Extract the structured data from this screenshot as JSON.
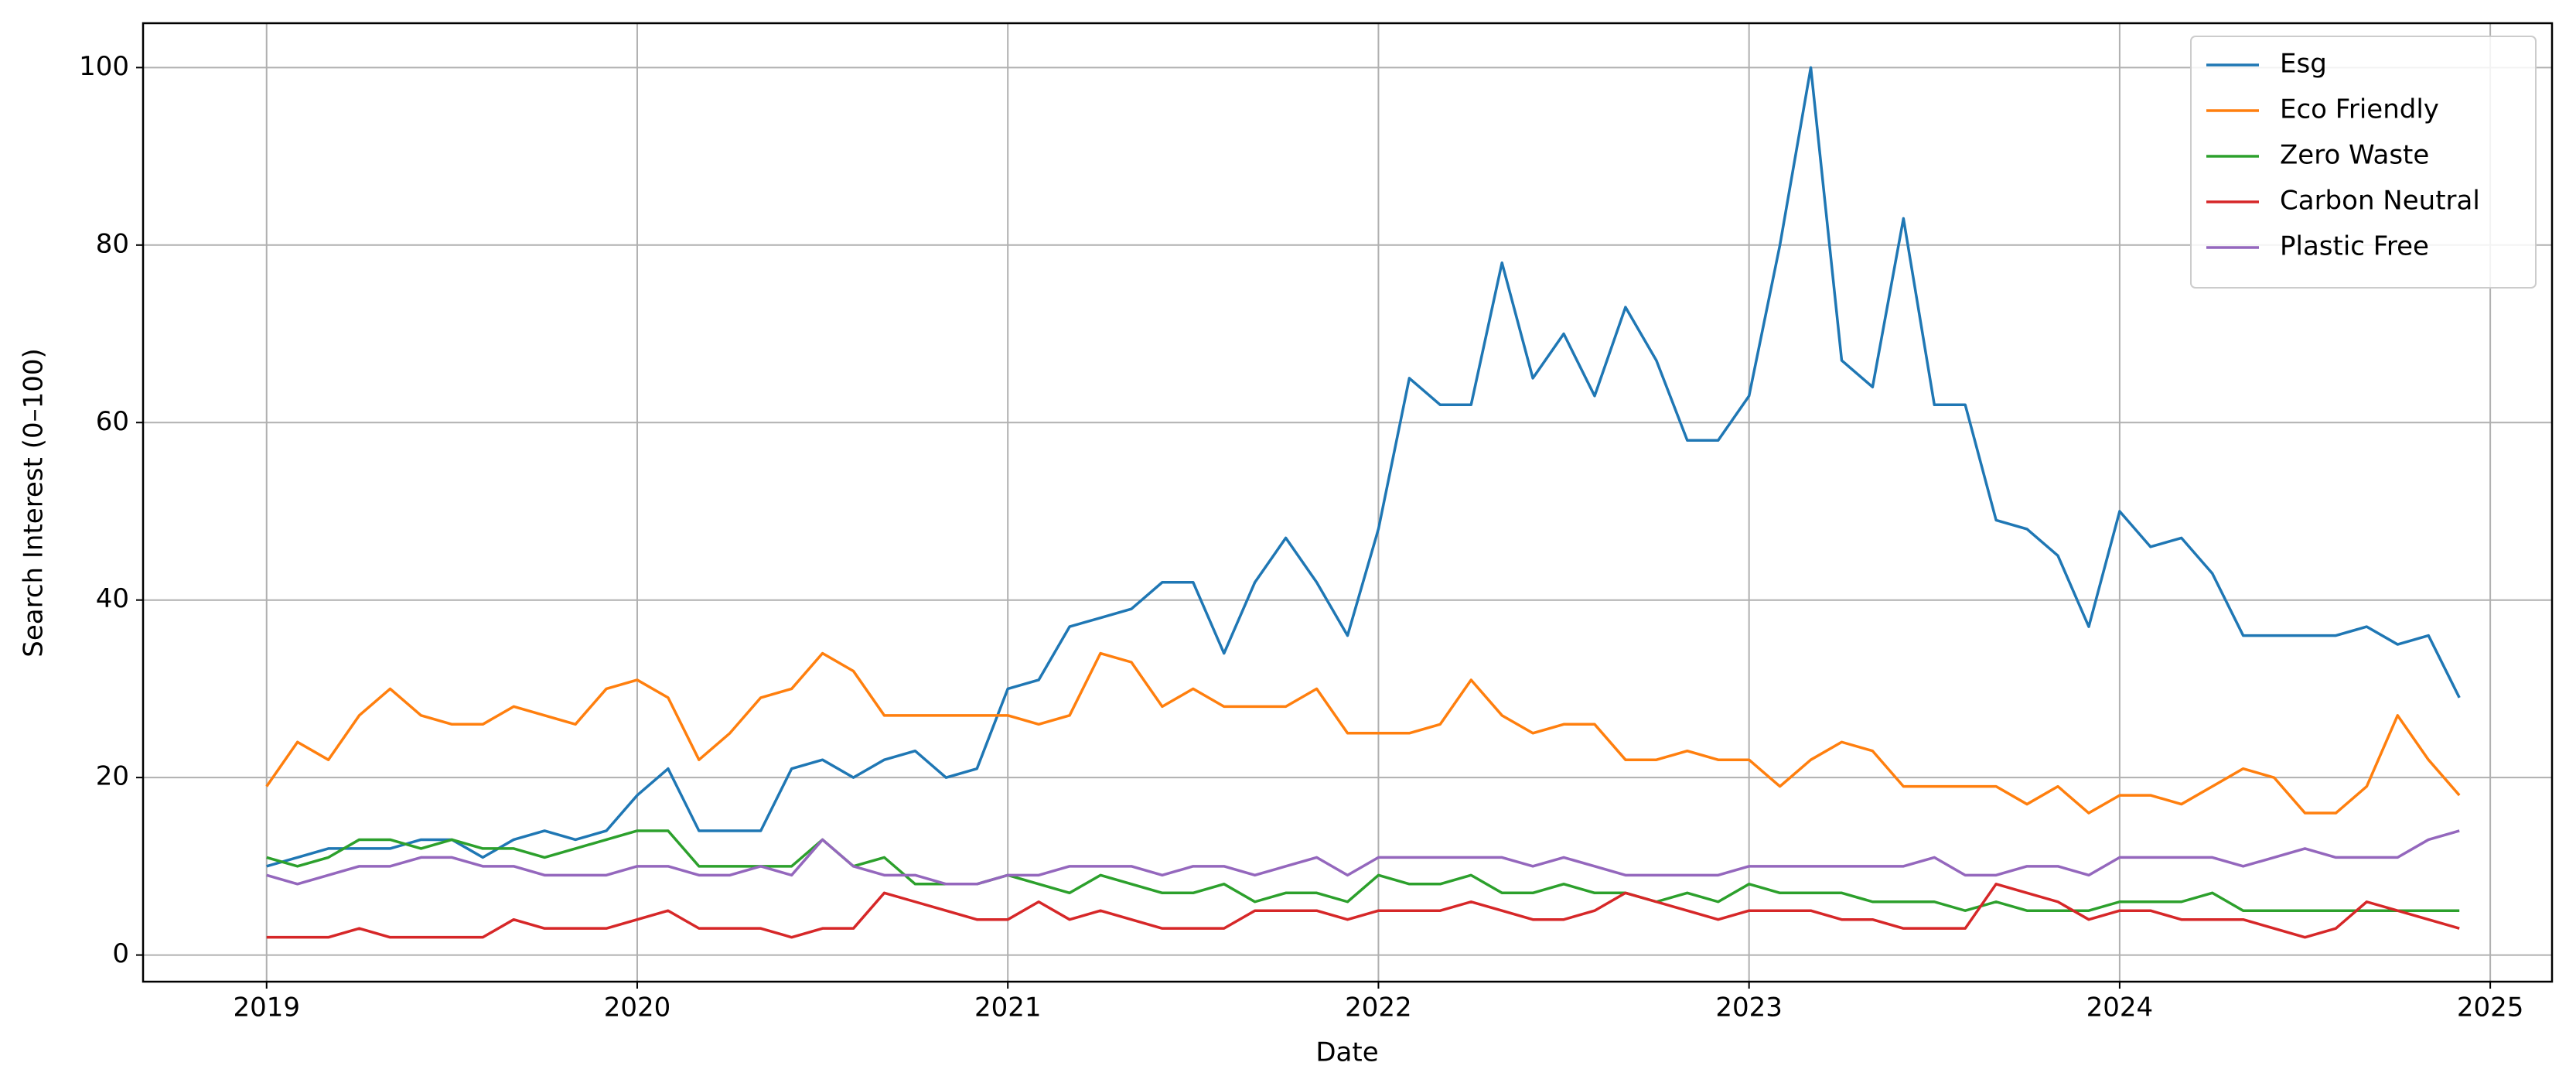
{
  "chart_data": {
    "type": "line",
    "x_label": "Date",
    "y_label": "Search Interest (0–100)",
    "x": [
      "2019-01",
      "2019-02",
      "2019-03",
      "2019-04",
      "2019-05",
      "2019-06",
      "2019-07",
      "2019-08",
      "2019-09",
      "2019-10",
      "2019-11",
      "2019-12",
      "2020-01",
      "2020-02",
      "2020-03",
      "2020-04",
      "2020-05",
      "2020-06",
      "2020-07",
      "2020-08",
      "2020-09",
      "2020-10",
      "2020-11",
      "2020-12",
      "2021-01",
      "2021-02",
      "2021-03",
      "2021-04",
      "2021-05",
      "2021-06",
      "2021-07",
      "2021-08",
      "2021-09",
      "2021-10",
      "2021-11",
      "2021-12",
      "2022-01",
      "2022-02",
      "2022-03",
      "2022-04",
      "2022-05",
      "2022-06",
      "2022-07",
      "2022-08",
      "2022-09",
      "2022-10",
      "2022-11",
      "2022-12",
      "2023-01",
      "2023-02",
      "2023-03",
      "2023-04",
      "2023-05",
      "2023-06",
      "2023-07",
      "2023-08",
      "2023-09",
      "2023-10",
      "2023-11",
      "2023-12",
      "2024-01",
      "2024-02",
      "2024-03",
      "2024-04",
      "2024-05",
      "2024-06",
      "2024-07",
      "2024-08",
      "2024-09",
      "2024-10",
      "2024-11",
      "2024-12"
    ],
    "series": [
      {
        "name": "Esg",
        "color": "#1f77b4",
        "values": [
          10,
          11,
          12,
          12,
          12,
          13,
          13,
          11,
          13,
          14,
          13,
          14,
          18,
          21,
          14,
          14,
          14,
          21,
          22,
          20,
          22,
          23,
          20,
          21,
          30,
          31,
          37,
          38,
          39,
          42,
          42,
          34,
          42,
          47,
          42,
          36,
          48,
          65,
          62,
          62,
          78,
          65,
          70,
          63,
          73,
          67,
          58,
          58,
          63,
          80,
          100,
          67,
          64,
          83,
          62,
          62,
          49,
          48,
          45,
          37,
          50,
          46,
          47,
          43,
          36,
          36,
          36,
          36,
          37,
          35,
          36,
          29
        ]
      },
      {
        "name": "Eco Friendly",
        "color": "#ff7f0e",
        "values": [
          19,
          24,
          22,
          27,
          30,
          27,
          26,
          26,
          28,
          27,
          26,
          30,
          31,
          29,
          22,
          25,
          29,
          30,
          34,
          32,
          27,
          27,
          27,
          27,
          27,
          26,
          27,
          34,
          33,
          28,
          30,
          28,
          28,
          28,
          30,
          25,
          25,
          25,
          26,
          31,
          27,
          25,
          26,
          26,
          22,
          22,
          23,
          22,
          22,
          19,
          22,
          24,
          23,
          19,
          19,
          19,
          19,
          17,
          19,
          16,
          18,
          18,
          17,
          19,
          21,
          20,
          16,
          16,
          19,
          27,
          22,
          18
        ]
      },
      {
        "name": "Zero Waste",
        "color": "#2ca02c",
        "values": [
          11,
          10,
          11,
          13,
          13,
          12,
          13,
          12,
          12,
          11,
          12,
          13,
          14,
          14,
          10,
          10,
          10,
          10,
          13,
          10,
          11,
          8,
          8,
          8,
          9,
          8,
          7,
          9,
          8,
          7,
          7,
          8,
          6,
          7,
          7,
          6,
          9,
          8,
          8,
          9,
          7,
          7,
          8,
          7,
          7,
          6,
          7,
          6,
          8,
          7,
          7,
          7,
          6,
          6,
          6,
          5,
          6,
          5,
          5,
          5,
          6,
          6,
          6,
          7,
          5,
          5,
          5,
          5,
          5,
          5,
          5,
          5
        ]
      },
      {
        "name": "Carbon Neutral",
        "color": "#d62728",
        "values": [
          2,
          2,
          2,
          3,
          2,
          2,
          2,
          2,
          4,
          3,
          3,
          3,
          4,
          5,
          3,
          3,
          3,
          2,
          3,
          3,
          7,
          6,
          5,
          4,
          4,
          6,
          4,
          5,
          4,
          3,
          3,
          3,
          5,
          5,
          5,
          4,
          5,
          5,
          5,
          6,
          5,
          4,
          4,
          5,
          7,
          6,
          5,
          4,
          5,
          5,
          5,
          4,
          4,
          3,
          3,
          3,
          8,
          7,
          6,
          4,
          5,
          5,
          4,
          4,
          4,
          3,
          2,
          3,
          6,
          5,
          4,
          3
        ]
      },
      {
        "name": "Plastic Free",
        "color": "#9467bd",
        "values": [
          9,
          8,
          9,
          10,
          10,
          11,
          11,
          10,
          10,
          9,
          9,
          9,
          10,
          10,
          9,
          9,
          10,
          9,
          13,
          10,
          9,
          9,
          8,
          8,
          9,
          9,
          10,
          10,
          10,
          9,
          10,
          10,
          9,
          10,
          11,
          9,
          11,
          11,
          11,
          11,
          11,
          10,
          11,
          10,
          9,
          9,
          9,
          9,
          10,
          10,
          10,
          10,
          10,
          10,
          11,
          9,
          9,
          10,
          10,
          9,
          11,
          11,
          11,
          11,
          10,
          11,
          12,
          11,
          11,
          11,
          13,
          14
        ]
      }
    ],
    "xlim": [
      "2018-09",
      "2025-03"
    ],
    "xticks": [
      "2019",
      "2020",
      "2021",
      "2022",
      "2023",
      "2024",
      "2025"
    ],
    "ylim": [
      -3,
      105
    ],
    "yticks": [
      0,
      20,
      40,
      60,
      80,
      100
    ],
    "grid": true,
    "legend": "upper right"
  }
}
